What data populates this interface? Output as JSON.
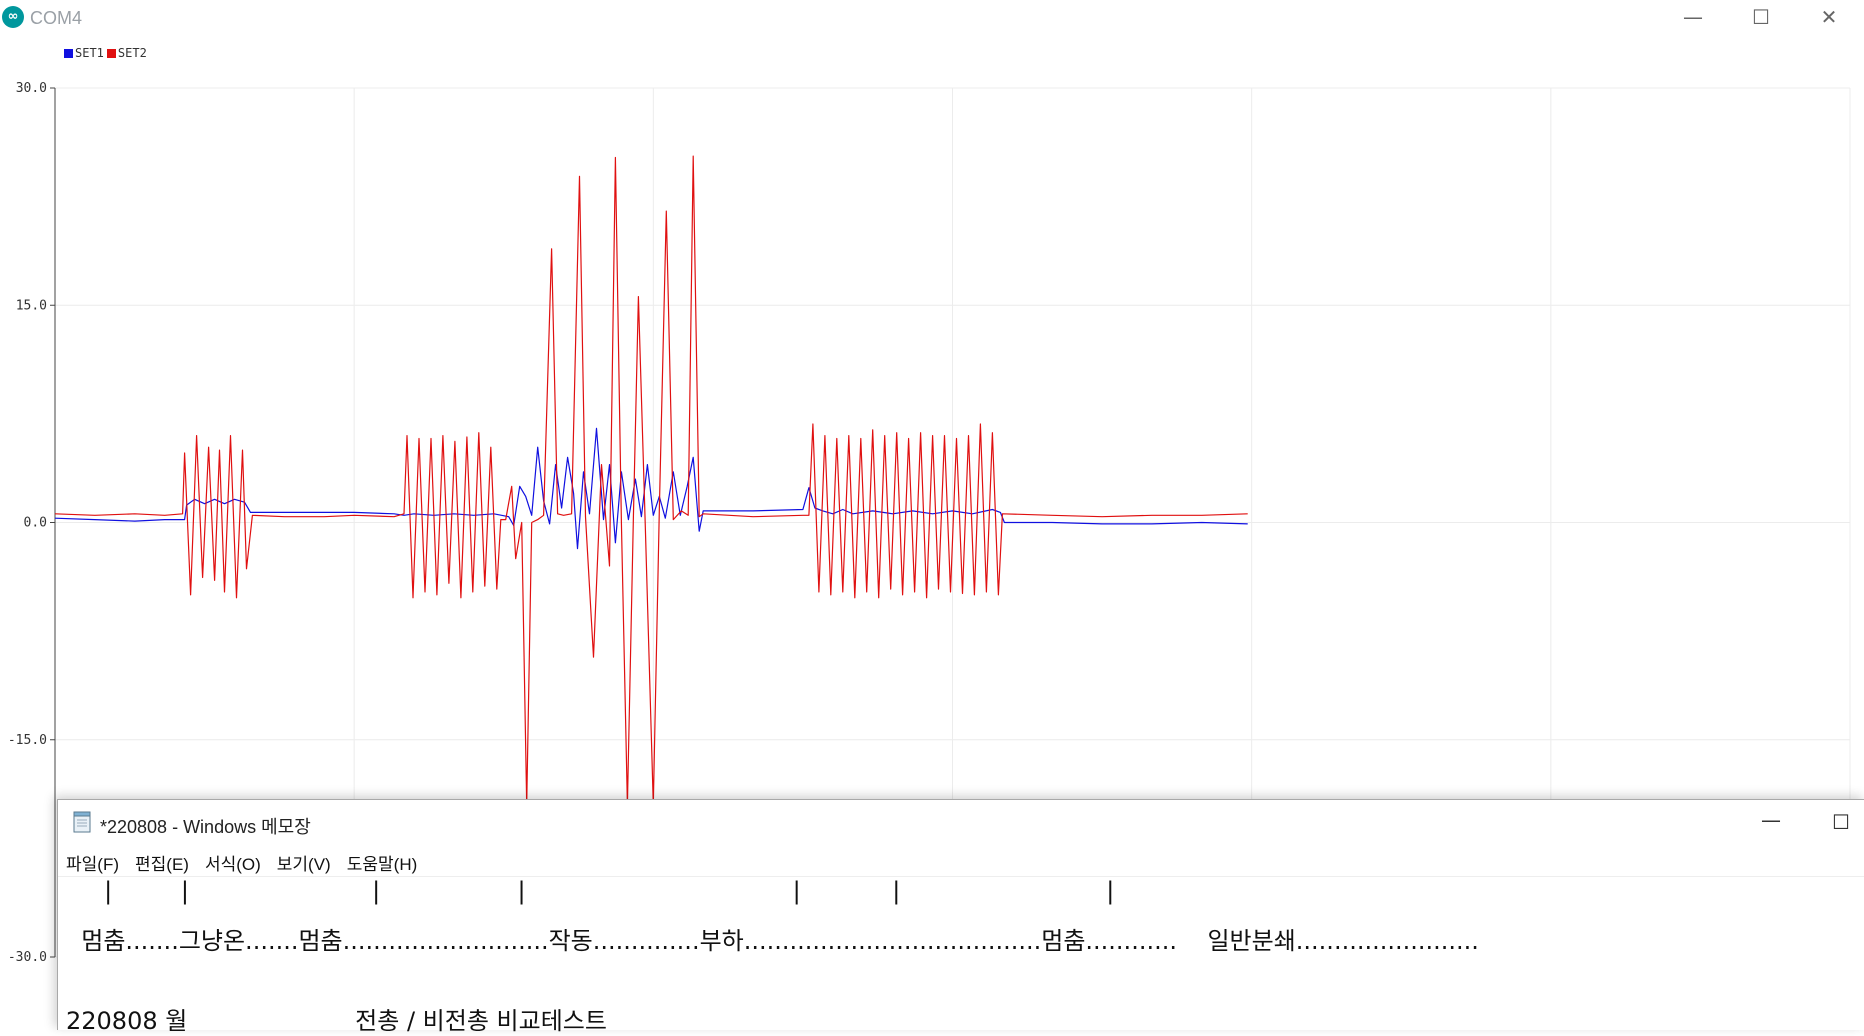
{
  "plotter": {
    "title": "COM4",
    "app_icon_glyph": "∞",
    "window_controls": {
      "minimize": "—",
      "maximize": "☐",
      "close": "✕"
    },
    "legend": [
      {
        "name": "SET1",
        "color": "#1010e0"
      },
      {
        "name": "SET2",
        "color": "#e01010"
      }
    ]
  },
  "chart_data": {
    "type": "line",
    "title": "",
    "xlabel": "",
    "ylabel": "",
    "ylim": [
      -30,
      30
    ],
    "y_ticks": [
      "30.0",
      "15.0",
      "0.0",
      "-15.0",
      "-30.0"
    ],
    "grid": true,
    "legend_position": "top-left",
    "series": [
      {
        "name": "SET1",
        "color": "#1010e0",
        "points": [
          [
            0,
            0.3
          ],
          [
            40,
            0.2
          ],
          [
            80,
            0.1
          ],
          [
            110,
            0.2
          ],
          [
            130,
            0.2
          ],
          [
            132,
            1.2
          ],
          [
            140,
            1.6
          ],
          [
            150,
            1.3
          ],
          [
            160,
            1.6
          ],
          [
            170,
            1.3
          ],
          [
            180,
            1.6
          ],
          [
            190,
            1.4
          ],
          [
            196,
            0.7
          ],
          [
            230,
            0.7
          ],
          [
            270,
            0.7
          ],
          [
            300,
            0.7
          ],
          [
            340,
            0.6
          ],
          [
            350,
            0.5
          ],
          [
            360,
            0.6
          ],
          [
            380,
            0.5
          ],
          [
            400,
            0.6
          ],
          [
            420,
            0.5
          ],
          [
            440,
            0.6
          ],
          [
            455,
            0.4
          ],
          [
            460,
            -0.2
          ],
          [
            466,
            2.5
          ],
          [
            472,
            1.8
          ],
          [
            478,
            0.5
          ],
          [
            484,
            5.2
          ],
          [
            490,
            1.5
          ],
          [
            496,
            -0.1
          ],
          [
            502,
            4.0
          ],
          [
            508,
            1.0
          ],
          [
            514,
            4.5
          ],
          [
            520,
            2.0
          ],
          [
            524,
            -1.8
          ],
          [
            530,
            3.5
          ],
          [
            536,
            0.6
          ],
          [
            543,
            6.5
          ],
          [
            550,
            0.2
          ],
          [
            556,
            4.0
          ],
          [
            562,
            -1.4
          ],
          [
            568,
            3.5
          ],
          [
            575,
            0.2
          ],
          [
            582,
            3.0
          ],
          [
            588,
            0.4
          ],
          [
            594,
            4.0
          ],
          [
            600,
            0.5
          ],
          [
            606,
            1.8
          ],
          [
            612,
            0.3
          ],
          [
            620,
            3.5
          ],
          [
            627,
            0.5
          ],
          [
            634,
            2.5
          ],
          [
            640,
            4.5
          ],
          [
            646,
            -0.6
          ],
          [
            650,
            0.8
          ],
          [
            700,
            0.8
          ],
          [
            750,
            0.9
          ],
          [
            756,
            2.4
          ],
          [
            762,
            1.0
          ],
          [
            770,
            0.8
          ],
          [
            780,
            0.6
          ],
          [
            790,
            0.9
          ],
          [
            800,
            0.6
          ],
          [
            820,
            0.8
          ],
          [
            840,
            0.6
          ],
          [
            860,
            0.8
          ],
          [
            880,
            0.6
          ],
          [
            900,
            0.8
          ],
          [
            920,
            0.6
          ],
          [
            940,
            0.9
          ],
          [
            948,
            0.7
          ],
          [
            952,
            0.0
          ],
          [
            1000,
            0.0
          ],
          [
            1050,
            -0.1
          ],
          [
            1100,
            -0.1
          ],
          [
            1150,
            0.0
          ],
          [
            1196,
            -0.1
          ]
        ]
      },
      {
        "name": "SET2",
        "color": "#e01010",
        "points": [
          [
            0,
            0.6
          ],
          [
            40,
            0.5
          ],
          [
            80,
            0.6
          ],
          [
            110,
            0.5
          ],
          [
            128,
            0.6
          ],
          [
            130,
            4.8
          ],
          [
            136,
            -5.0
          ],
          [
            142,
            6.0
          ],
          [
            148,
            -3.8
          ],
          [
            154,
            5.2
          ],
          [
            160,
            -4.0
          ],
          [
            165,
            5.0
          ],
          [
            170,
            -4.8
          ],
          [
            176,
            6.0
          ],
          [
            182,
            -5.2
          ],
          [
            188,
            5.0
          ],
          [
            192,
            -3.2
          ],
          [
            198,
            0.5
          ],
          [
            230,
            0.4
          ],
          [
            270,
            0.4
          ],
          [
            300,
            0.5
          ],
          [
            340,
            0.4
          ],
          [
            350,
            0.6
          ],
          [
            353,
            6.0
          ],
          [
            359,
            -5.2
          ],
          [
            365,
            5.8
          ],
          [
            371,
            -4.8
          ],
          [
            377,
            5.8
          ],
          [
            383,
            -5.0
          ],
          [
            389,
            6.0
          ],
          [
            395,
            -4.2
          ],
          [
            401,
            5.6
          ],
          [
            407,
            -5.2
          ],
          [
            413,
            5.9
          ],
          [
            419,
            -4.8
          ],
          [
            425,
            6.2
          ],
          [
            431,
            -4.4
          ],
          [
            437,
            5.2
          ],
          [
            443,
            -4.6
          ],
          [
            447,
            0.2
          ],
          [
            452,
            0.2
          ],
          [
            458,
            2.5
          ],
          [
            462,
            -2.5
          ],
          [
            468,
            0.0
          ],
          [
            473,
            -19.5
          ],
          [
            478,
            0.0
          ],
          [
            484,
            0.2
          ],
          [
            490,
            0.5
          ],
          [
            498,
            18.9
          ],
          [
            504,
            0.6
          ],
          [
            510,
            0.5
          ],
          [
            518,
            0.6
          ],
          [
            526,
            23.9
          ],
          [
            532,
            0.4
          ],
          [
            540,
            -9.3
          ],
          [
            548,
            4.0
          ],
          [
            556,
            -3.0
          ],
          [
            562,
            25.2
          ],
          [
            568,
            0.0
          ],
          [
            574,
            -19.5
          ],
          [
            580,
            0.4
          ],
          [
            585,
            15.6
          ],
          [
            592,
            -0.5
          ],
          [
            600,
            -19.5
          ],
          [
            606,
            0.8
          ],
          [
            613,
            21.5
          ],
          [
            620,
            0.2
          ],
          [
            628,
            0.8
          ],
          [
            635,
            0.5
          ],
          [
            640,
            25.3
          ],
          [
            646,
            0.4
          ],
          [
            650,
            0.6
          ],
          [
            700,
            0.4
          ],
          [
            750,
            0.5
          ],
          [
            756,
            0.5
          ],
          [
            760,
            6.8
          ],
          [
            766,
            -4.8
          ],
          [
            772,
            6.0
          ],
          [
            778,
            -5.0
          ],
          [
            784,
            5.8
          ],
          [
            790,
            -4.8
          ],
          [
            796,
            6.0
          ],
          [
            802,
            -5.2
          ],
          [
            808,
            5.8
          ],
          [
            814,
            -4.8
          ],
          [
            820,
            6.4
          ],
          [
            826,
            -5.2
          ],
          [
            832,
            6.0
          ],
          [
            838,
            -4.6
          ],
          [
            844,
            6.2
          ],
          [
            850,
            -5.0
          ],
          [
            856,
            5.8
          ],
          [
            862,
            -4.8
          ],
          [
            868,
            6.2
          ],
          [
            874,
            -5.2
          ],
          [
            880,
            6.0
          ],
          [
            886,
            -4.6
          ],
          [
            892,
            6.0
          ],
          [
            898,
            -4.8
          ],
          [
            904,
            5.8
          ],
          [
            910,
            -4.9
          ],
          [
            916,
            6.0
          ],
          [
            922,
            -5.0
          ],
          [
            928,
            6.8
          ],
          [
            934,
            -4.8
          ],
          [
            940,
            6.2
          ],
          [
            946,
            -5.0
          ],
          [
            950,
            0.6
          ],
          [
            1000,
            0.5
          ],
          [
            1050,
            0.4
          ],
          [
            1100,
            0.5
          ],
          [
            1150,
            0.5
          ],
          [
            1196,
            0.6
          ]
        ]
      }
    ]
  },
  "notepad": {
    "title": "*220808 - Windows 메모장",
    "window_controls": {
      "minimize": "—",
      "maximize": "☐"
    },
    "menu": [
      "파일(F)",
      "편집(E)",
      "서식(O)",
      "보기(V)",
      "도움말(H)"
    ],
    "lines": {
      "line1": "     |         |                        |                  |                                   |            |                           |",
      "line2": "  멈춤.......그냥온.......멈춤...........................작동..............부하.......................................멈춤............    일반분쇄........................",
      "line4": "220808 월                      전총 / 비전총 비교테스트"
    }
  }
}
